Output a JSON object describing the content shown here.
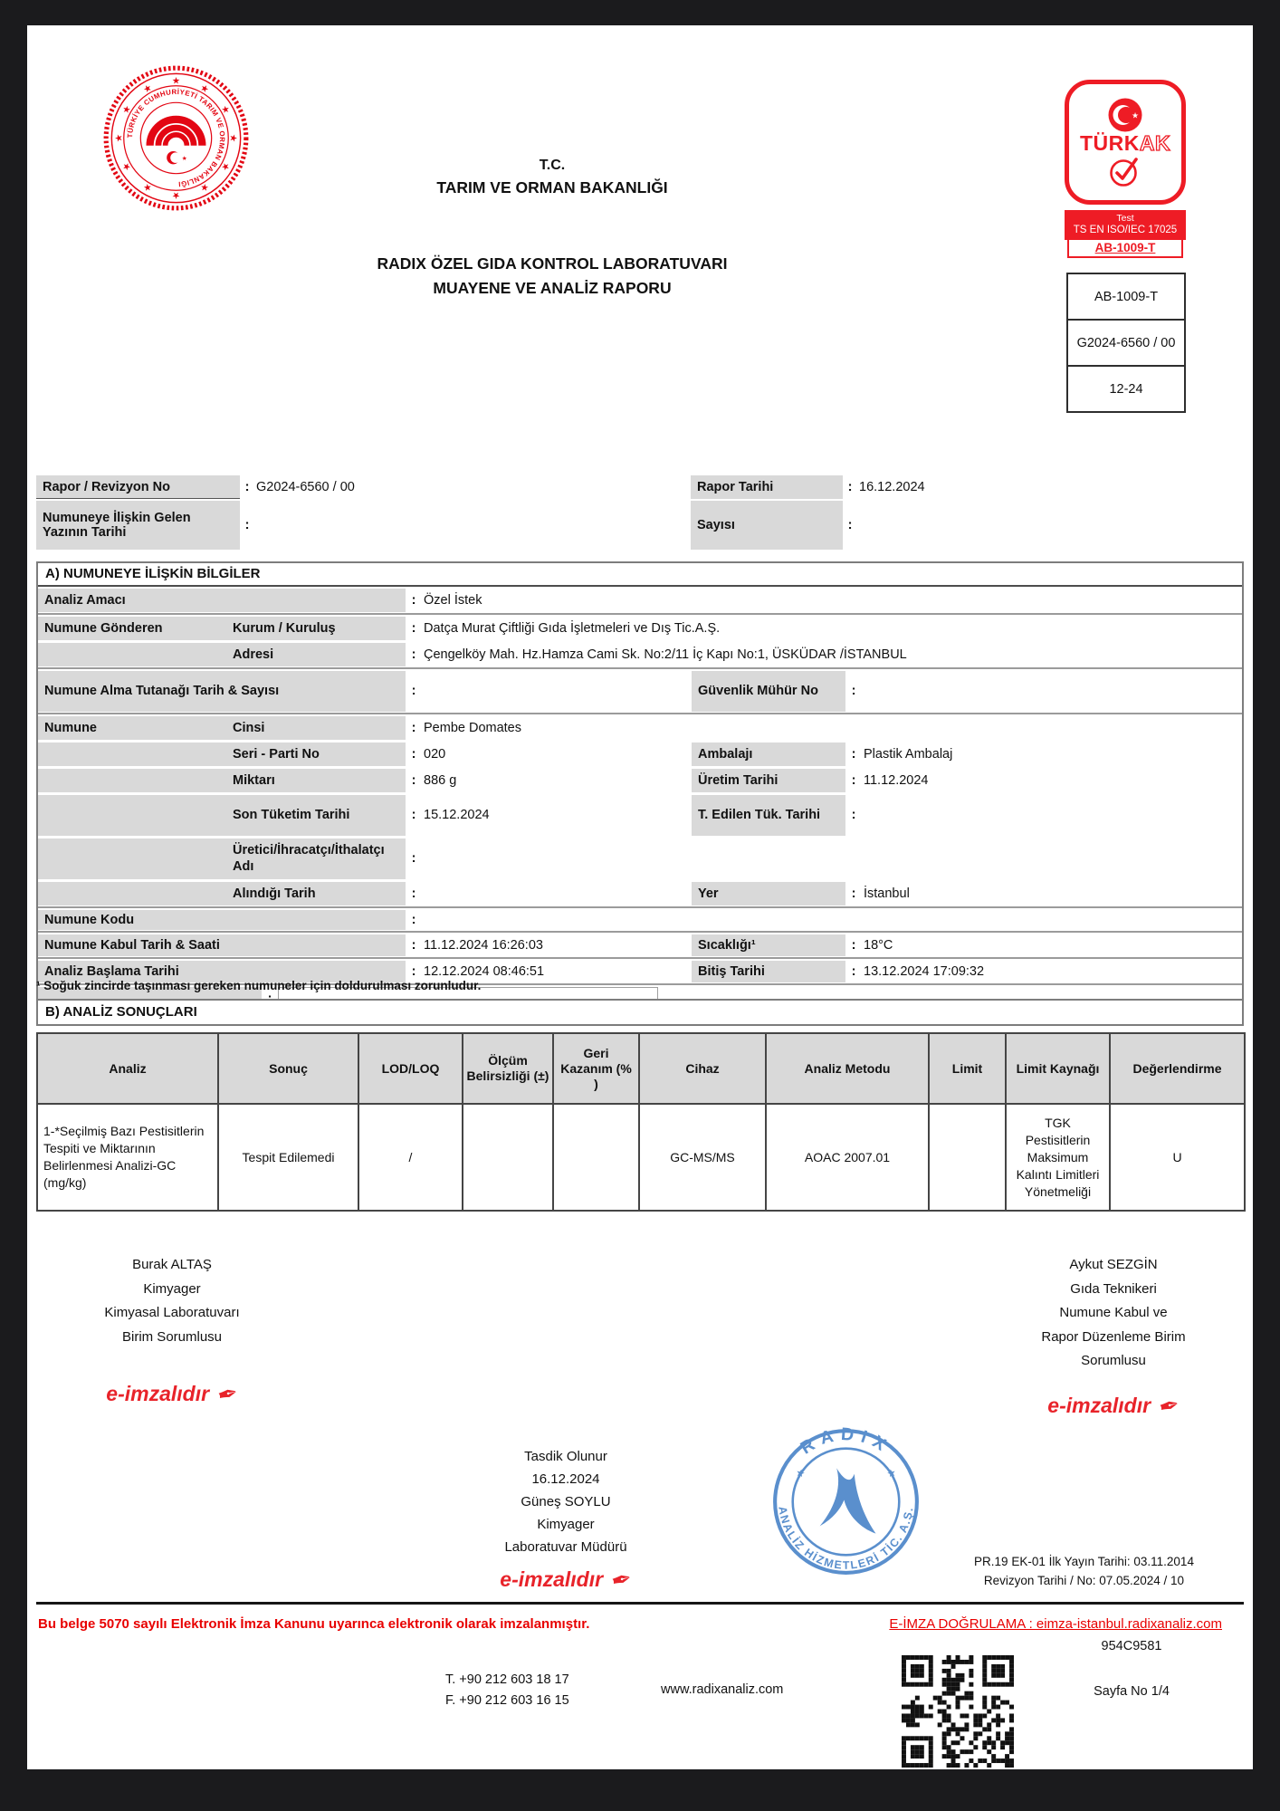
{
  "ui": {
    "colon": ":"
  },
  "colors": {
    "accent_red": "#e30613",
    "turkak_red": "#ee1c25",
    "stamp_blue": "#4d86c9",
    "label_gray": "#d9d9d9"
  },
  "header": {
    "tc": "T.C.",
    "ministry": "TARIM VE ORMAN BAKANLIĞI",
    "title_line1": "RADIX ÖZEL GIDA KONTROL LABORATUVARI",
    "title_line2": "MUAYENE VE ANALİZ RAPORU",
    "seal_text": "TÜRKİYE CUMHURİYETİ TARIM VE ORMAN BAKANLIĞI",
    "turkak": {
      "brand_solid": "TÜRK",
      "brand_outline": "AK",
      "band_line1": "Test",
      "band_line2": "TS EN ISO/IEC 17025",
      "code": "AB-1009-T"
    },
    "boxes": [
      "AB-1009-T",
      "G2024-6560 / 00",
      "12-24"
    ]
  },
  "meta": {
    "left": [
      {
        "label": "Rapor / Revizyon No",
        "value": "G2024-6560 / 00"
      },
      {
        "label": "Numuneye İlişkin Gelen Yazının Tarihi",
        "value": ""
      }
    ],
    "right": [
      {
        "label": "Rapor Tarihi",
        "value": "16.12.2024"
      },
      {
        "label": "Sayısı",
        "value": ""
      }
    ]
  },
  "sectionA": {
    "title": "A) NUMUNEYE İLİŞKİN BİLGİLER",
    "rows": {
      "amaci": {
        "label": "Analiz Amacı",
        "value": "Özel İstek"
      },
      "kurum": {
        "label": "Numune Gönderen",
        "sub": "Kurum / Kuruluş",
        "value": "Datça Murat Çiftliği Gıda İşletmeleri ve Dış Tic.A.Ş."
      },
      "adres": {
        "sub": "Adresi",
        "value": "Çengelköy Mah. Hz.Hamza Cami Sk. No:2/11 İç Kapı No:1, ÜSKÜDAR /İSTANBUL"
      },
      "tutanak": {
        "label": "Numune Alma Tutanağı Tarih & Sayısı",
        "value": "",
        "rlabel": "Güvenlik Mühür No",
        "rvalue": ""
      },
      "cinsi": {
        "label": "Numune",
        "sub": "Cinsi",
        "value": "Pembe Domates"
      },
      "seri": {
        "sub": "Seri - Parti No",
        "value": "020",
        "rlabel": "Ambalajı",
        "rvalue": "Plastik Ambalaj"
      },
      "miktar": {
        "sub": "Miktarı",
        "value": "886 g",
        "rlabel": "Üretim Tarihi",
        "rvalue": "11.12.2024"
      },
      "skt": {
        "sub": "Son Tüketim Tarihi",
        "value": "15.12.2024",
        "rlabel": "T. Edilen Tük. Tarihi",
        "rvalue": ""
      },
      "uretici": {
        "sub": "Üretici/İhracatçı/İthalatçı Adı",
        "value": ""
      },
      "alindigi": {
        "sub": "Alındığı Tarih",
        "value": "",
        "rlabel": "Yer",
        "rvalue": "İstanbul"
      },
      "kod": {
        "label": "Numune Kodu",
        "value": ""
      },
      "kabul": {
        "label": "Numune Kabul Tarih & Saati",
        "value": "11.12.2024 16:26:03",
        "rlabel": "Sıcaklığı¹",
        "rvalue": "18°C"
      },
      "baslama": {
        "label": "Analiz Başlama Tarihi",
        "value": "12.12.2024 08:46:51",
        "rlabel": "Bitiş Tarihi",
        "rvalue": "13.12.2024 17:09:32"
      },
      "bos": {
        "value": ""
      }
    },
    "footnote": "¹ Soğuk zincirde taşınması gereken numuneler için doldurulması zorunludur."
  },
  "sectionB": {
    "title": "B) ANALİZ SONUÇLARI",
    "columns": [
      "Analiz",
      "Sonuç",
      "LOD/LOQ",
      "Ölçüm Belirsizliği (±)",
      "Geri Kazanım (% )",
      "Cihaz",
      "Analiz Metodu",
      "Limit",
      "Limit Kaynağı",
      "Değerlendirme"
    ],
    "row": {
      "analiz": "1-*Seçilmiş Bazı Pestisitlerin Tespiti ve Miktarının Belirlenmesi Analizi-GC (mg/kg)",
      "sonuc": "Tespit Edilemedi",
      "lod": "/",
      "olcum": "",
      "geri": "",
      "cihaz": "GC-MS/MS",
      "metot": "AOAC 2007.01",
      "limit": "",
      "kaynak": "TGK Pestisitlerin Maksimum Kalıntı Limitleri Yönetmeliği",
      "degerlendirme": "U"
    }
  },
  "signatures": {
    "esign_label": "e-imzalıdır",
    "left": {
      "name": "Burak ALTAŞ",
      "title": "Kimyager",
      "org1": "Kimyasal Laboratuvarı",
      "org2": "Birim Sorumlusu"
    },
    "right": {
      "name": "Aykut SEZGİN",
      "title": "Gıda Teknikeri",
      "org1": "Numune Kabul ve",
      "org2": "Rapor Düzenleme Birim",
      "org3": "Sorumlusu"
    },
    "approval": {
      "heading": "Tasdik Olunur",
      "date": "16.12.2024",
      "name": "Güneş SOYLU",
      "title": "Kimyager",
      "role": "Laboratuvar Müdürü"
    },
    "stamp": {
      "top": "RADIX",
      "bottom": "ANALİZ HİZMETLERİ TİC. A.Ş."
    }
  },
  "docref": {
    "line1": "PR.19 EK-01 İlk Yayın Tarihi: 03.11.2014",
    "line2": "Revizyon Tarihi  / No: 07.05.2024 / 10"
  },
  "footer": {
    "disclaimer": "Bu belge 5070 sayılı Elektronik İmza Kanunu uyarınca elektronik olarak imzalanmıştır.",
    "everify": "E-İMZA DOĞRULAMA : eimza-istanbul.radixanaliz.com",
    "phone": "T. +90 212 603 18 17",
    "fax": "F. +90 212 603 16 15",
    "website": "www.radixanaliz.com",
    "code": "954C9581",
    "page": "Sayfa No  1/4"
  }
}
